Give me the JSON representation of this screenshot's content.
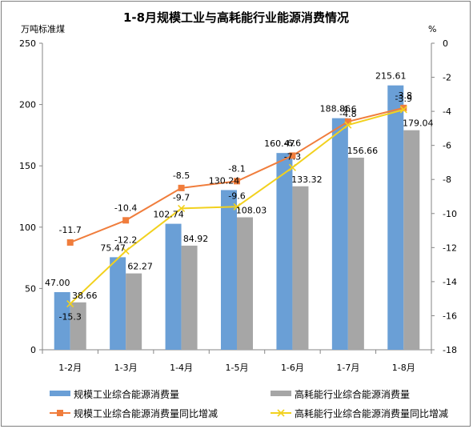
{
  "chart_data": {
    "type": "bar",
    "title": "1-8月规模工业与高耗能行业能源消费情况",
    "y_left_label": "万吨标准煤",
    "y_right_label": "%",
    "categories": [
      "1-2月",
      "1-3月",
      "1-4月",
      "1-5月",
      "1-6月",
      "1-7月",
      "1-8月"
    ],
    "y_left_range": [
      0,
      250
    ],
    "y_left_ticks": [
      0,
      50,
      100,
      150,
      200,
      250
    ],
    "y_right_range": [
      -18,
      0
    ],
    "y_right_ticks": [
      0,
      -2,
      -4,
      -6,
      -8,
      -10,
      -12,
      -14,
      -16,
      -18
    ],
    "grid": false,
    "legend_position": "bottom",
    "series": [
      {
        "name": "规模工业综合能源消费量",
        "type": "bar",
        "axis": "left",
        "color": "#6a9fd6",
        "values": [
          47.0,
          75.47,
          102.74,
          130.24,
          160.47,
          188.86,
          215.61
        ],
        "labels": [
          "47.00",
          "75.47",
          "102.74",
          "130.24",
          "160.47",
          "188.86",
          "215.61"
        ]
      },
      {
        "name": "高耗能行业综合能源消费量",
        "type": "bar",
        "axis": "left",
        "color": "#a6a6a6",
        "values": [
          38.66,
          62.27,
          84.92,
          108.03,
          133.32,
          156.66,
          179.04
        ],
        "labels": [
          "38.66",
          "62.27",
          "84.92",
          "108.03",
          "133.32",
          "156.66",
          "179.04"
        ]
      },
      {
        "name": "规模工业综合能源消费量同比增减",
        "type": "line",
        "axis": "right",
        "color": "#f07d3c",
        "marker": "square",
        "values": [
          -11.7,
          -10.4,
          -8.5,
          -8.1,
          -6.6,
          -4.6,
          -3.8
        ],
        "labels": [
          "-11.7",
          "-10.4",
          "-8.5",
          "-8.1",
          "-6.6",
          "-4.6",
          "-3.8"
        ]
      },
      {
        "name": "高耗能行业综合能源消费量同比增减",
        "type": "line",
        "axis": "right",
        "color": "#f2d11e",
        "marker": "x",
        "values": [
          -15.3,
          -12.2,
          -9.7,
          -9.6,
          -7.3,
          -4.8,
          -3.9
        ],
        "labels": [
          "-15.3",
          "-12.2",
          "-9.7",
          "-9.6",
          "-7.3",
          "-4.8",
          "-3.9"
        ]
      }
    ]
  }
}
